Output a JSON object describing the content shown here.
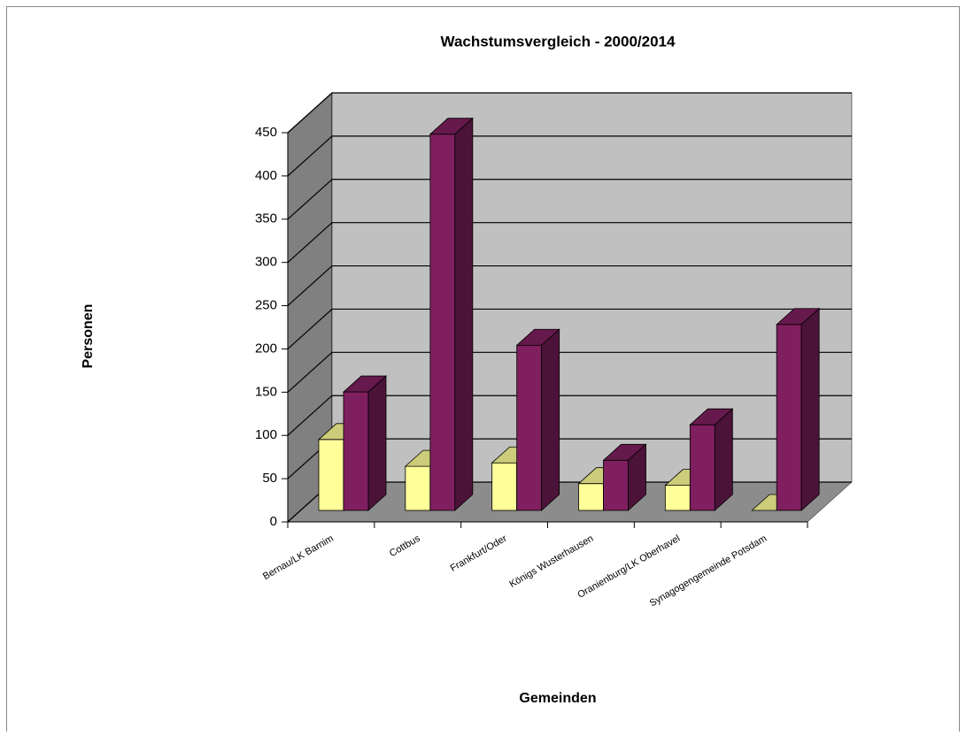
{
  "chart_data": {
    "type": "bar3d",
    "title": "Wachstumsvergleich - 2000/2014",
    "x_label": "Gemeinden",
    "y_label": "Personen",
    "categories": [
      "Bernau/LK Barnim",
      "Cottbus",
      "Frankfurt/Oder",
      "Königs Wusterhausen",
      "Oranienburg/LK Oberhavel",
      "Synagogengemeinde Potsdam"
    ],
    "series": [
      {
        "color": "#ffff99",
        "values": [
          82,
          51,
          55,
          31,
          29,
          0
        ]
      },
      {
        "color": "#7f1f5f",
        "values": [
          137,
          435,
          191,
          58,
          99,
          215
        ]
      }
    ],
    "ylim": [
      0,
      450
    ],
    "yticks": [
      0,
      50,
      100,
      150,
      200,
      250,
      300,
      350,
      400,
      450
    ],
    "grid": true
  }
}
